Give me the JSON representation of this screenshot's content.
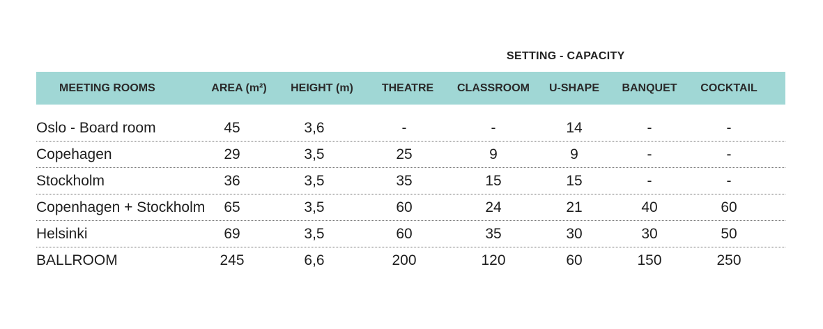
{
  "group_title": "SETTING - CAPACITY",
  "headers": {
    "name": "MEETING ROOMS",
    "area": "AREA (m²)",
    "height": "HEIGHT (m)",
    "theatre": "THEATRE",
    "classroom": "CLASSROOM",
    "ushape": "U-SHAPE",
    "banquet": "BANQUET",
    "cocktail": "COCKTAIL"
  },
  "rows": [
    {
      "name": "Oslo - Board room",
      "area": "45",
      "height": "3,6",
      "theatre": "-",
      "classroom": "-",
      "ushape": "14",
      "banquet": "-",
      "cocktail": "-"
    },
    {
      "name": "Copehagen",
      "area": "29",
      "height": "3,5",
      "theatre": "25",
      "classroom": "9",
      "ushape": "9",
      "banquet": "-",
      "cocktail": "-"
    },
    {
      "name": "Stockholm",
      "area": "36",
      "height": "3,5",
      "theatre": "35",
      "classroom": "15",
      "ushape": "15",
      "banquet": "-",
      "cocktail": "-"
    },
    {
      "name": "Copenhagen + Stockholm",
      "area": "65",
      "height": "3,5",
      "theatre": "60",
      "classroom": "24",
      "ushape": "21",
      "banquet": "40",
      "cocktail": "60"
    },
    {
      "name": "Helsinki",
      "area": "69",
      "height": "3,5",
      "theatre": "60",
      "classroom": "35",
      "ushape": "30",
      "banquet": "30",
      "cocktail": "50"
    },
    {
      "name": "BALLROOM",
      "area": "245",
      "height": "6,6",
      "theatre": "200",
      "classroom": "120",
      "ushape": "60",
      "banquet": "150",
      "cocktail": "250"
    }
  ],
  "colors": {
    "header_bg": "#a0d7d5",
    "text": "#1e1e1e",
    "divider": "#6e6e6e"
  }
}
